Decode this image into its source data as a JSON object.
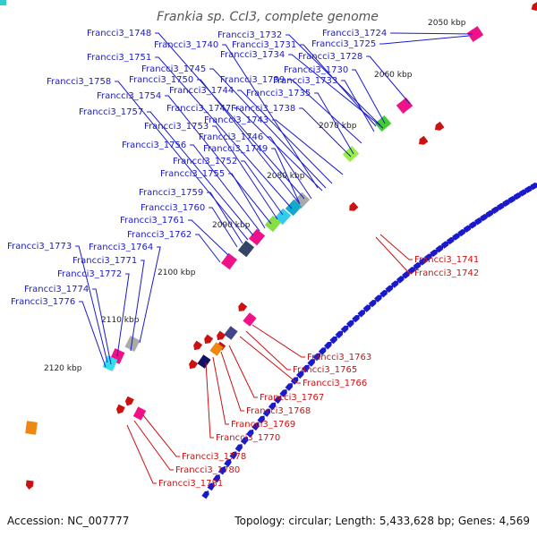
{
  "title": "Frankia sp. CcI3, complete genome",
  "footer": {
    "accession": "Accession: NC_007777",
    "summary": "Topology: circular; Length: 5,433,628 bp; Genes: 4,569"
  },
  "ticks": [
    "2050 kbp",
    "2060 kbp",
    "2070 kbp",
    "2080 kbp",
    "2090 kbp",
    "2100 kbp",
    "2110 kbp",
    "2120 kbp"
  ],
  "colors": {
    "forward": "#1a1acc",
    "reverse": "#cc1111",
    "backbone": "#777777",
    "tick_mark": "#118811"
  },
  "forward_labels": [
    "Francci3_1724",
    "Francci3_1725",
    "Francci3_1728",
    "Francci3_1730",
    "Francci3_1731",
    "Francci3_1732",
    "Francci3_1733",
    "Francci3_1734",
    "Francci3_1735",
    "Francci3_1738",
    "Francci3_1739",
    "Francci3_1740",
    "Francci3_1743",
    "Francci3_1744",
    "Francci3_1745",
    "Francci3_1746",
    "Francci3_1747",
    "Francci3_1748",
    "Francci3_1749",
    "Francci3_1750",
    "Francci3_1751",
    "Francci3_1752",
    "Francci3_1753",
    "Francci3_1754",
    "Francci3_1755",
    "Francci3_1756",
    "Francci3_1757",
    "Francci3_1758",
    "Francci3_1759",
    "Francci3_1760",
    "Francci3_1761",
    "Francci3_1762",
    "Francci3_1764",
    "Francci3_1771",
    "Francci3_1772",
    "Francci3_1773",
    "Francci3_1774",
    "Francci3_1776"
  ],
  "reverse_labels": [
    "Francci3_1741",
    "Francci3_1742",
    "Francci3_1763",
    "Francci3_1765",
    "Francci3_1766",
    "Francci3_1767",
    "Francci3_1768",
    "Francci3_1769",
    "Francci3_1770",
    "Francci3_1778",
    "Francci3_1780",
    "Francci3_1781"
  ]
}
